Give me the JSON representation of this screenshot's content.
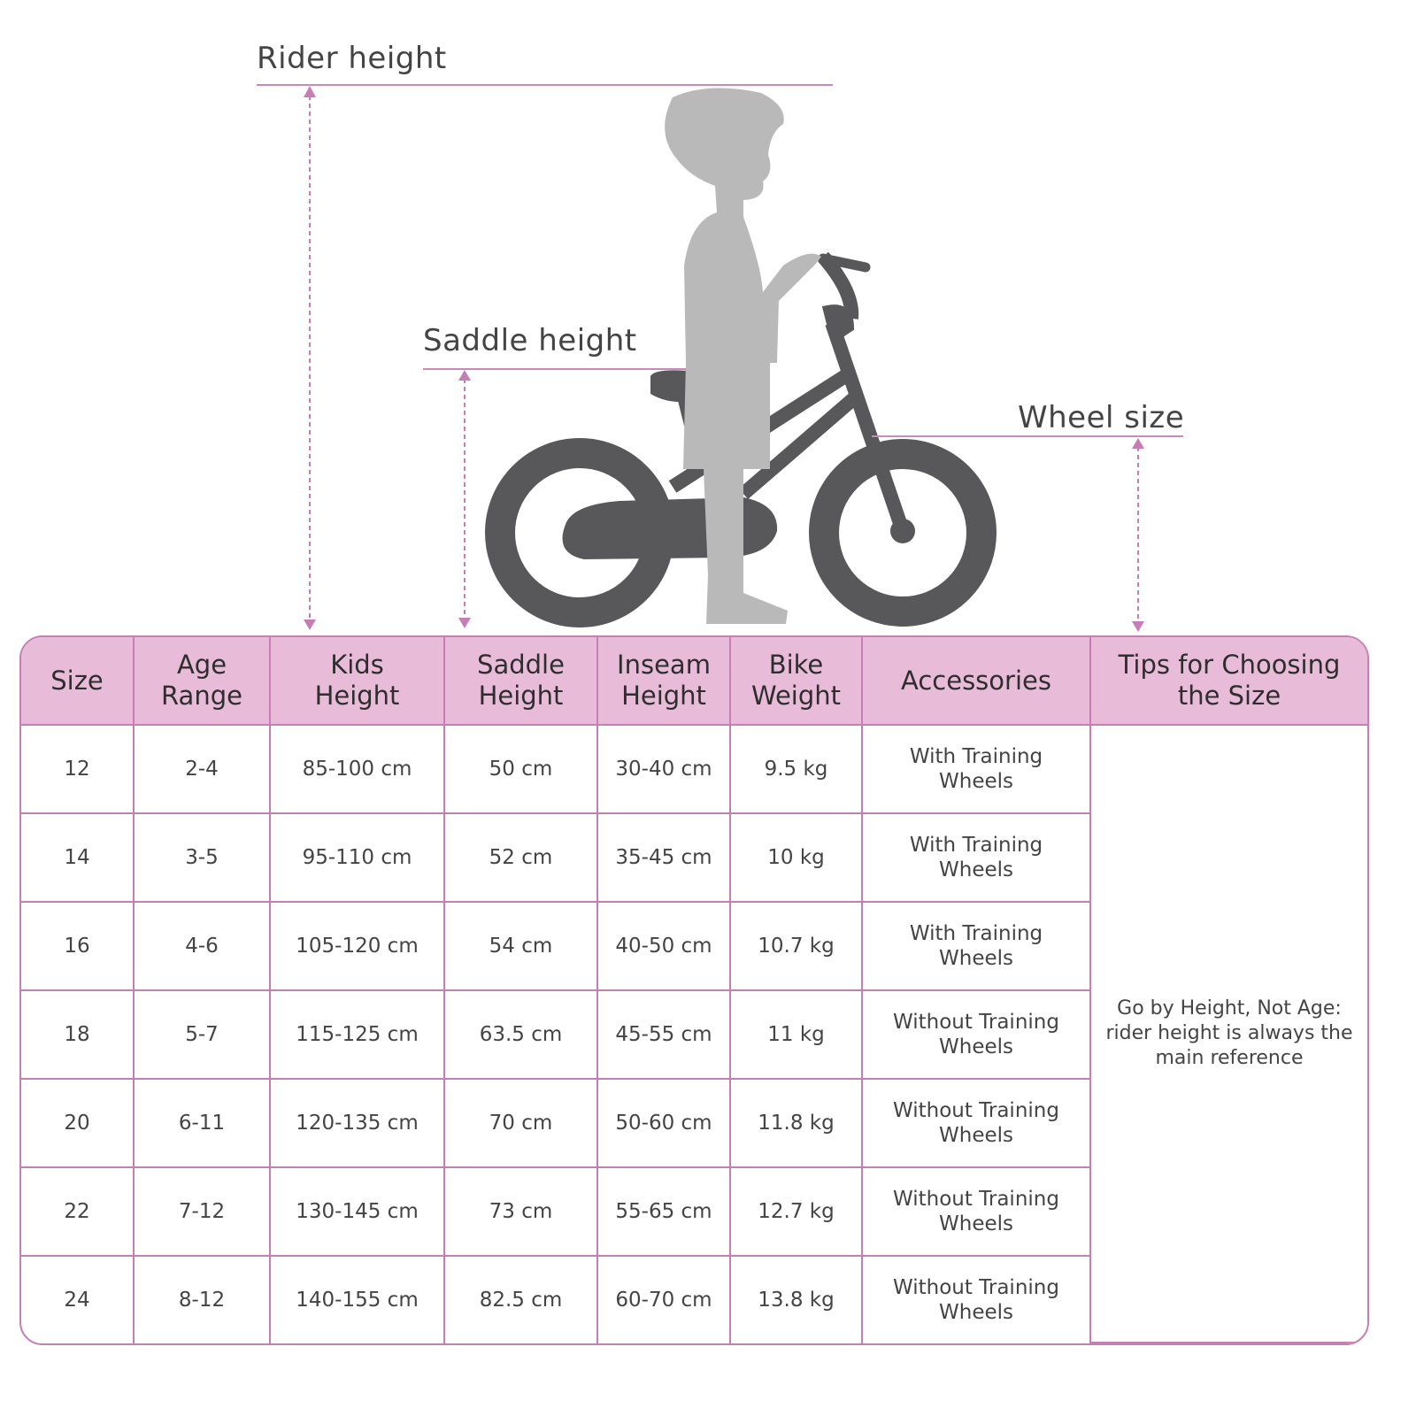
{
  "labels": {
    "rider_height": "Rider height",
    "saddle_height": "Saddle height",
    "wheel_size": "Wheel size"
  },
  "colors": {
    "header_bg": "#e8bcd9",
    "border": "#c77db5",
    "bike": "#58585a",
    "child": "#b9b9b9"
  },
  "table": {
    "headers": [
      "Size",
      "Age\nRange",
      "Kids\nHeight",
      "Saddle\nHeight",
      "Inseam\nHeight",
      "Bike\nWeight",
      "Accessories",
      "Tips for Choosing\nthe Size"
    ],
    "rows": [
      [
        "12",
        "2-4",
        "85-100 cm",
        "50 cm",
        "30-40 cm",
        "9.5 kg",
        "With Training\nWheels"
      ],
      [
        "14",
        "3-5",
        "95-110 cm",
        "52 cm",
        "35-45 cm",
        "10 kg",
        "With Training\nWheels"
      ],
      [
        "16",
        "4-6",
        "105-120 cm",
        "54 cm",
        "40-50 cm",
        "10.7 kg",
        "With Training\nWheels"
      ],
      [
        "18",
        "5-7",
        "115-125 cm",
        "63.5 cm",
        "45-55 cm",
        "11 kg",
        "Without Training\nWheels"
      ],
      [
        "20",
        "6-11",
        "120-135 cm",
        "70 cm",
        "50-60 cm",
        "11.8 kg",
        "Without Training\nWheels"
      ],
      [
        "22",
        "7-12",
        "130-145 cm",
        "73 cm",
        "55-65 cm",
        "12.7 kg",
        "Without Training\nWheels"
      ],
      [
        "24",
        "8-12",
        "140-155 cm",
        "82.5 cm",
        "60-70 cm",
        "13.8 kg",
        "Without Training\nWheels"
      ]
    ],
    "tip": "Go by Height, Not Age:\nrider height is always the\nmain reference"
  }
}
